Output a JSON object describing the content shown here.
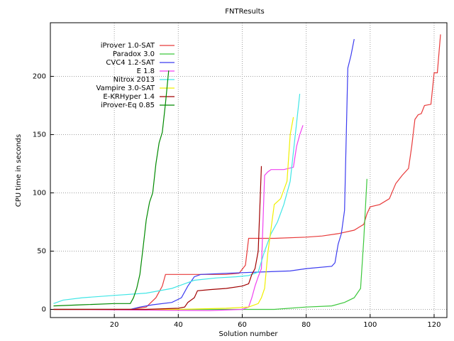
{
  "chart_data": {
    "type": "line",
    "title": "FNTResults",
    "x_label": "Solution number",
    "y_label": "CPU time in seconds",
    "xlim": [
      0,
      124
    ],
    "ylim": [
      -7,
      246
    ],
    "xticks": [
      20,
      40,
      60,
      80,
      100,
      120
    ],
    "yticks": [
      0,
      50,
      100,
      150,
      200
    ],
    "grid": true,
    "legend": "upper left",
    "series": [
      {
        "name": "iProver 1.0-SAT",
        "color": "#e83a3a",
        "x": [
          1,
          25,
          30,
          33,
          35,
          36,
          40,
          55,
          59,
          61,
          62,
          70,
          80,
          85,
          90,
          95,
          98,
          99,
          100,
          103,
          106,
          108,
          110,
          112,
          113,
          114,
          115,
          116,
          117,
          119,
          120,
          121,
          122
        ],
        "values": [
          0,
          0,
          2,
          10,
          20,
          30,
          30,
          30,
          31,
          38,
          61,
          61,
          62,
          63,
          65,
          68,
          73,
          82,
          88,
          90,
          95,
          108,
          115,
          121,
          140,
          163,
          167,
          168,
          175,
          176,
          203,
          203,
          236
        ]
      },
      {
        "name": "Paradox 3.0",
        "color": "#3cc83c",
        "x": [
          1,
          60,
          70,
          80,
          88,
          92,
          95,
          97,
          98,
          99
        ],
        "values": [
          0,
          0,
          0,
          2,
          3,
          6,
          10,
          18,
          60,
          112
        ]
      },
      {
        "name": "CVC4 1.2-SAT",
        "color": "#3c3cf0",
        "x": [
          1,
          25,
          28,
          32,
          38,
          41,
          43,
          45,
          47,
          55,
          65,
          75,
          80,
          88,
          89,
          90,
          91,
          92,
          93,
          94,
          95
        ],
        "values": [
          0,
          0,
          2,
          4,
          6,
          10,
          20,
          28,
          30,
          31,
          32,
          33,
          35,
          37,
          40,
          56,
          65,
          85,
          207,
          218,
          232
        ]
      },
      {
        "name": "E 1.8",
        "color": "#f040f0",
        "x": [
          1,
          50,
          60,
          62,
          63,
          64,
          65,
          66,
          67,
          68,
          69,
          73,
          76,
          77,
          78,
          79
        ],
        "values": [
          0,
          -1,
          0,
          2,
          10,
          20,
          28,
          35,
          115,
          118,
          120,
          120,
          122,
          140,
          150,
          158
        ]
      },
      {
        "name": "Nitrox 2013",
        "color": "#40e6e6",
        "x": [
          1,
          4,
          10,
          20,
          30,
          38,
          42,
          45,
          52,
          58,
          62,
          65,
          67,
          69,
          71,
          73,
          75,
          76,
          77,
          78
        ],
        "values": [
          5,
          8,
          10,
          12,
          14,
          18,
          22,
          25,
          27,
          28,
          29,
          32,
          50,
          65,
          75,
          90,
          110,
          135,
          160,
          185
        ]
      },
      {
        "name": "Vampire 3.0-SAT",
        "color": "#f0f000",
        "x": [
          1,
          40,
          55,
          62,
          65,
          66,
          67,
          68,
          70,
          72,
          74,
          75,
          76
        ],
        "values": [
          0,
          0,
          1,
          2,
          5,
          10,
          18,
          48,
          90,
          95,
          110,
          150,
          165
        ]
      },
      {
        "name": "E-KRHyper 1.4",
        "color": "#a00000",
        "x": [
          1,
          30,
          40,
          42,
          43,
          44,
          45,
          46,
          50,
          55,
          60,
          62,
          63,
          64,
          65,
          66
        ],
        "values": [
          0,
          0,
          1,
          2,
          6,
          8,
          10,
          16,
          17,
          18,
          20,
          22,
          30,
          35,
          50,
          123
        ]
      },
      {
        "name": "iProver-Eq 0.85",
        "color": "#008a00",
        "x": [
          1,
          10,
          20,
          25,
          26,
          27,
          28,
          29,
          30,
          31,
          32,
          33,
          34,
          35,
          36,
          37
        ],
        "values": [
          3,
          4,
          5,
          5,
          10,
          18,
          30,
          53,
          77,
          92,
          100,
          125,
          143,
          152,
          177,
          205
        ]
      }
    ]
  }
}
